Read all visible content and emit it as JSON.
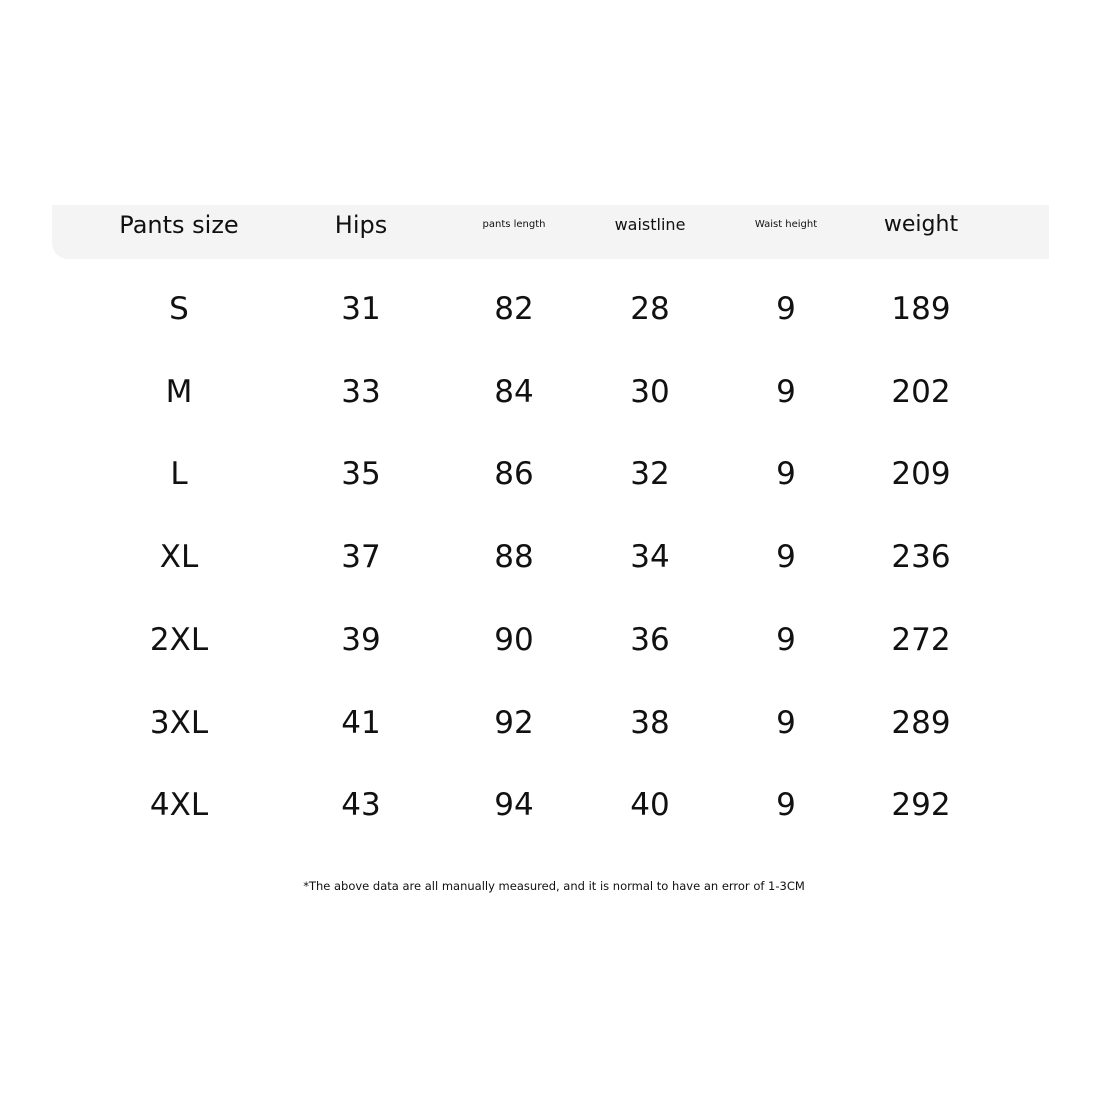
{
  "table": {
    "headers": [
      "Pants size",
      "Hips",
      "pants length",
      "waistline",
      "Waist height",
      "weight"
    ],
    "rows": [
      [
        "S",
        "31",
        "82",
        "28",
        "9",
        "189"
      ],
      [
        "M",
        "33",
        "84",
        "30",
        "9",
        "202"
      ],
      [
        "L",
        "35",
        "86",
        "32",
        "9",
        "209"
      ],
      [
        "XL",
        "37",
        "88",
        "34",
        "9",
        "236"
      ],
      [
        "2XL",
        "39",
        "90",
        "36",
        "9",
        "272"
      ],
      [
        "3XL",
        "41",
        "92",
        "38",
        "9",
        "289"
      ],
      [
        "4XL",
        "43",
        "94",
        "40",
        "9",
        "292"
      ]
    ]
  },
  "footnote": "*The above data are all manually measured, and it is normal to have an error of 1-3CM"
}
